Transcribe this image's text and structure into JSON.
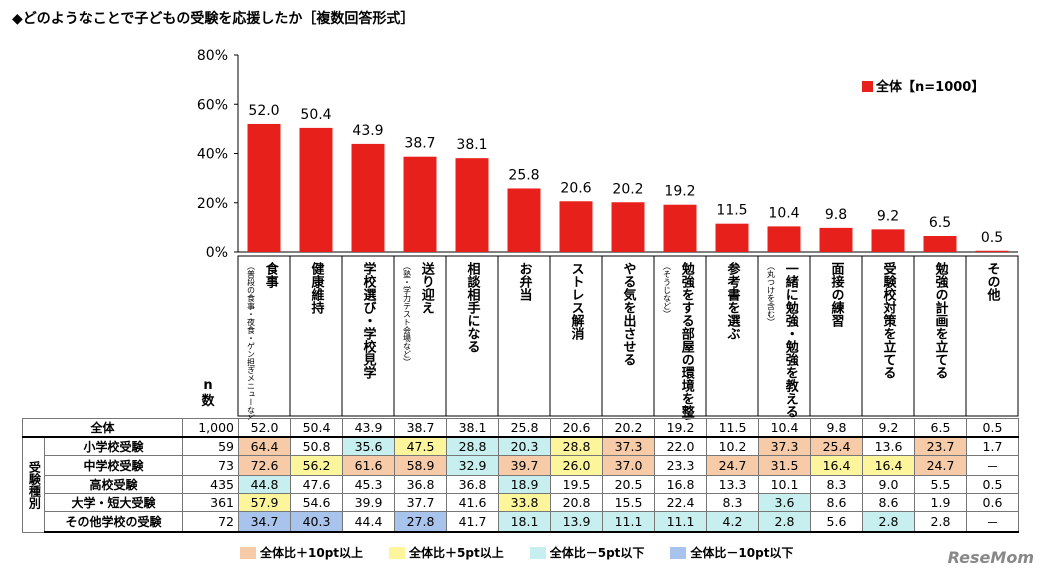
{
  "title": "◆どのようなことで子どもの受験を応援したか［複数回答形式］",
  "chart_data": {
    "type": "bar",
    "title": "◆どのようなことで子どもの受験を応援したか［複数回答形式］",
    "ylim": [
      0,
      80
    ],
    "yticks": [
      "0%",
      "20%",
      "40%",
      "60%",
      "80%"
    ],
    "ytick_values": [
      0,
      20,
      40,
      60,
      80
    ],
    "legend": {
      "label": "全体【n=1000】",
      "position": "top-right",
      "color": "#e8201c"
    },
    "categories": [
      {
        "main": "食事",
        "sub": "（普段の食事・夜食・ゲン担ぎメニューなど）"
      },
      {
        "main": "健康維持",
        "sub": ""
      },
      {
        "main": "学校選び・学校見学",
        "sub": ""
      },
      {
        "main": "送り迎え",
        "sub": "（塾・学力テスト会場など）"
      },
      {
        "main": "相談相手になる",
        "sub": ""
      },
      {
        "main": "お弁当",
        "sub": ""
      },
      {
        "main": "ストレス解消",
        "sub": ""
      },
      {
        "main": "やる気を出させる",
        "sub": ""
      },
      {
        "main": "勉強をする部屋の環境を整える",
        "sub": "（そうじなど）"
      },
      {
        "main": "参考書を選ぶ",
        "sub": ""
      },
      {
        "main": "一緒に勉強・勉強を教える",
        "sub": "（丸つけを含む）"
      },
      {
        "main": "面接の練習",
        "sub": ""
      },
      {
        "main": "受験校対策を立てる",
        "sub": ""
      },
      {
        "main": "勉強の計画を立てる",
        "sub": ""
      },
      {
        "main": "その他",
        "sub": ""
      }
    ],
    "values": [
      52.0,
      50.4,
      43.9,
      38.7,
      38.1,
      25.8,
      20.6,
      20.2,
      19.2,
      11.5,
      10.4,
      9.8,
      9.2,
      6.5,
      0.5
    ],
    "value_labels": [
      "52.0",
      "50.4",
      "43.9",
      "38.7",
      "38.1",
      "25.8",
      "20.6",
      "20.2",
      "19.2",
      "11.5",
      "10.4",
      "9.8",
      "9.2",
      "6.5",
      "0.5"
    ],
    "bar_color": "#e8201c"
  },
  "table": {
    "n_header": "n数",
    "group_label": "受験種別",
    "total_row": {
      "label": "全体",
      "n": "1,000",
      "values": [
        "52.0",
        "50.4",
        "43.9",
        "38.7",
        "38.1",
        "25.8",
        "20.6",
        "20.2",
        "19.2",
        "11.5",
        "10.4",
        "9.8",
        "9.2",
        "6.5",
        "0.5"
      ],
      "marks": [
        "",
        "",
        "",
        "",
        "",
        "",
        "",
        "",
        "",
        "",
        "",
        "",
        "",
        "",
        ""
      ]
    },
    "rows": [
      {
        "label": "小学校受験",
        "n": "59",
        "values": [
          "64.4",
          "50.8",
          "35.6",
          "47.5",
          "28.8",
          "20.3",
          "28.8",
          "37.3",
          "22.0",
          "10.2",
          "37.3",
          "25.4",
          "13.6",
          "23.7",
          "1.7"
        ],
        "marks": [
          "p10",
          "",
          "m5",
          "p5",
          "m5",
          "m5",
          "p5",
          "p10",
          "",
          "",
          "p10",
          "p10",
          "",
          "p10",
          ""
        ]
      },
      {
        "label": "中学校受験",
        "n": "73",
        "values": [
          "72.6",
          "56.2",
          "61.6",
          "58.9",
          "32.9",
          "39.7",
          "26.0",
          "37.0",
          "23.3",
          "24.7",
          "31.5",
          "16.4",
          "16.4",
          "24.7",
          "－"
        ],
        "marks": [
          "p10",
          "p5",
          "p10",
          "p10",
          "m5",
          "p10",
          "p5",
          "p10",
          "",
          "p10",
          "p10",
          "p5",
          "p5",
          "p10",
          ""
        ]
      },
      {
        "label": "高校受験",
        "n": "435",
        "values": [
          "44.8",
          "47.6",
          "45.3",
          "36.8",
          "36.8",
          "18.9",
          "19.5",
          "20.5",
          "16.8",
          "13.3",
          "10.1",
          "8.3",
          "9.0",
          "5.5",
          "0.5"
        ],
        "marks": [
          "m5",
          "",
          "",
          "",
          "",
          "m5",
          "",
          "",
          "",
          "",
          "",
          "",
          "",
          "",
          ""
        ]
      },
      {
        "label": "大学・短大受験",
        "n": "361",
        "values": [
          "57.9",
          "54.6",
          "39.9",
          "37.7",
          "41.6",
          "33.8",
          "20.8",
          "15.5",
          "22.4",
          "8.3",
          "3.6",
          "8.6",
          "8.6",
          "1.9",
          "0.6"
        ],
        "marks": [
          "p5",
          "",
          "",
          "",
          "",
          "p5",
          "",
          "",
          "",
          "",
          "m5",
          "",
          "",
          "",
          ""
        ]
      },
      {
        "label": "その他学校の受験",
        "n": "72",
        "values": [
          "34.7",
          "40.3",
          "44.4",
          "27.8",
          "41.7",
          "18.1",
          "13.9",
          "11.1",
          "11.1",
          "4.2",
          "2.8",
          "5.6",
          "2.8",
          "2.8",
          "－"
        ],
        "marks": [
          "m10",
          "m10",
          "",
          "m10",
          "",
          "m5",
          "m5",
          "m5",
          "m5",
          "m5",
          "m5",
          "",
          "m5",
          "",
          ""
        ]
      }
    ]
  },
  "bottom_legend": [
    {
      "key": "p10",
      "label": "全体比＋10pt以上",
      "color": "#f8cba8"
    },
    {
      "key": "p5",
      "label": "全体比＋5pt以上",
      "color": "#fdf59c"
    },
    {
      "key": "m5",
      "label": "全体比－5pt以下",
      "color": "#c8efef"
    },
    {
      "key": "m10",
      "label": "全体比－10pt以下",
      "color": "#a8c4ec"
    }
  ],
  "watermark": "ReseMom"
}
